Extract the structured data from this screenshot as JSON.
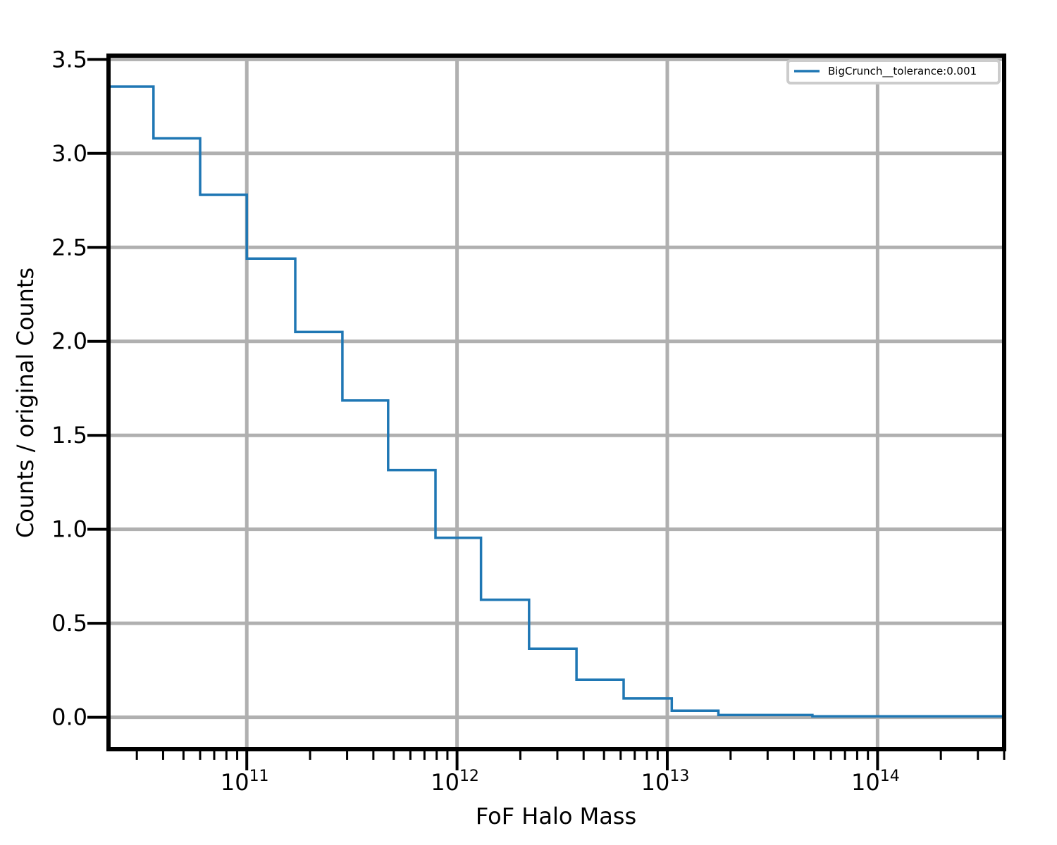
{
  "chart_data": {
    "type": "line",
    "drawstyle": "steps-post",
    "xlabel": "FoF Halo Mass",
    "ylabel": "Counts / original Counts",
    "xscale": "log",
    "xlim": [
      22000000000.0,
      400000000000000.0
    ],
    "ylim": [
      -0.17,
      3.52
    ],
    "grid": true,
    "legend_position": "top-right",
    "x_ticks": [
      {
        "value": 100000000000.0,
        "base": "10",
        "exp": "11"
      },
      {
        "value": 1000000000000.0,
        "base": "10",
        "exp": "12"
      },
      {
        "value": 10000000000000.0,
        "base": "10",
        "exp": "13"
      },
      {
        "value": 100000000000000.0,
        "base": "10",
        "exp": "14"
      }
    ],
    "y_ticks": [
      {
        "value": 0.0,
        "label": "0.0"
      },
      {
        "value": 0.5,
        "label": "0.5"
      },
      {
        "value": 1.0,
        "label": "1.0"
      },
      {
        "value": 1.5,
        "label": "1.5"
      },
      {
        "value": 2.0,
        "label": "2.0"
      },
      {
        "value": 2.5,
        "label": "2.5"
      },
      {
        "value": 3.0,
        "label": "3.0"
      },
      {
        "value": 3.5,
        "label": "3.5"
      }
    ],
    "series": [
      {
        "name": "BigCrunch__tolerance:0.001",
        "color": "#1f77b4",
        "x": [
          22000000000.0,
          36000000000.0,
          60000000000.0,
          100000000000.0,
          170000000000.0,
          285000000000.0,
          470000000000.0,
          790000000000.0,
          1300000000000.0,
          2200000000000.0,
          3700000000000.0,
          6200000000000.0,
          10500000000000.0,
          17500000000000.0,
          49000000000000.0,
          400000000000000.0
        ],
        "y": [
          3.355,
          3.08,
          2.78,
          2.44,
          2.05,
          1.685,
          1.315,
          0.955,
          0.625,
          0.365,
          0.2,
          0.1,
          0.035,
          0.012,
          0.005,
          0.005
        ]
      }
    ]
  }
}
